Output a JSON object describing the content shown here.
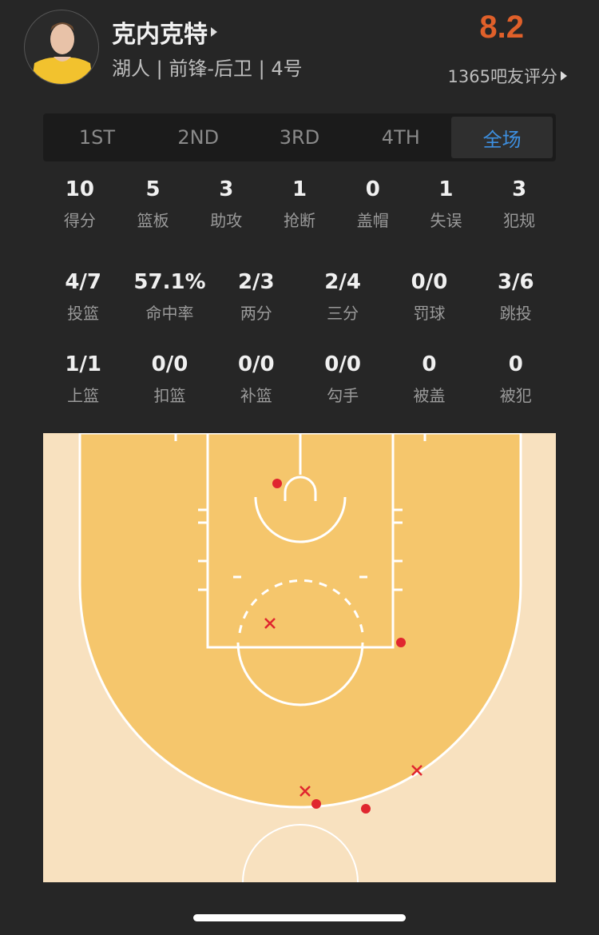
{
  "player": {
    "name": "克内克特",
    "info": "湖人 | 前锋-后卫 | 4号",
    "rating": "8.2",
    "raters": "1365吧友评分"
  },
  "tabs": [
    {
      "label": "1ST"
    },
    {
      "label": "2ND"
    },
    {
      "label": "3RD"
    },
    {
      "label": "4TH"
    },
    {
      "label": "全场",
      "active": true
    }
  ],
  "basic": [
    {
      "v": "10",
      "l": "得分"
    },
    {
      "v": "5",
      "l": "篮板"
    },
    {
      "v": "3",
      "l": "助攻"
    },
    {
      "v": "1",
      "l": "抢断"
    },
    {
      "v": "0",
      "l": "盖帽"
    },
    {
      "v": "1",
      "l": "失误"
    },
    {
      "v": "3",
      "l": "犯规"
    }
  ],
  "shooting": [
    {
      "v": "4/7",
      "l": "投篮"
    },
    {
      "v": "57.1%",
      "l": "命中率"
    },
    {
      "v": "2/3",
      "l": "两分"
    },
    {
      "v": "2/4",
      "l": "三分"
    },
    {
      "v": "0/0",
      "l": "罚球"
    },
    {
      "v": "3/6",
      "l": "跳投"
    }
  ],
  "types": [
    {
      "v": "1/1",
      "l": "上篮"
    },
    {
      "v": "0/0",
      "l": "扣篮"
    },
    {
      "v": "0/0",
      "l": "补篮"
    },
    {
      "v": "0/0",
      "l": "勾手"
    },
    {
      "v": "0",
      "l": "被盖"
    },
    {
      "v": "0",
      "l": "被犯"
    }
  ],
  "shot_chart": {
    "shots": [
      "made",
      "made",
      "made",
      "made",
      "missed",
      "missed",
      "missed"
    ],
    "colors": {
      "made": "#e0262f",
      "missed": "#e0262f",
      "paint": "#f5c66c",
      "floor": "#f8e1bf"
    }
  }
}
